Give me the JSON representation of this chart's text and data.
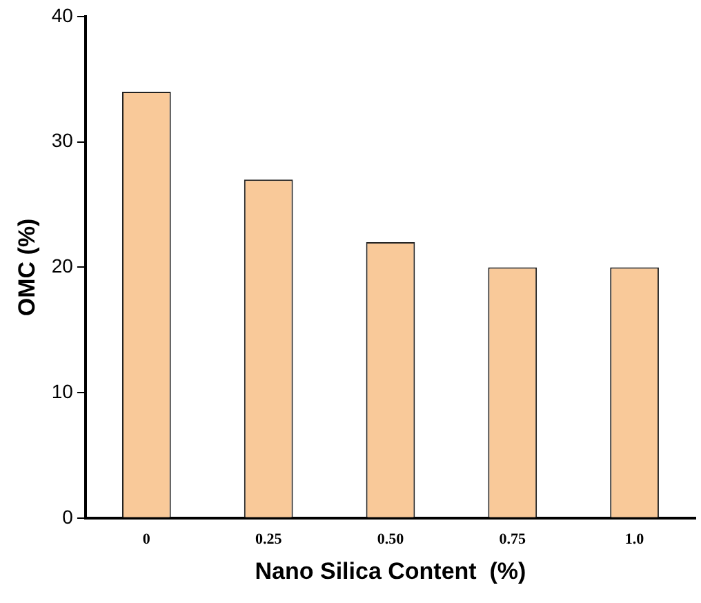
{
  "chart_data": {
    "type": "bar",
    "xlabel": "Nano Silica Content  (%)",
    "ylabel": "OMC (%)",
    "categories": [
      "0",
      "0.25",
      "0.50",
      "0.75",
      "1.0"
    ],
    "values": [
      34,
      27,
      22,
      20,
      20
    ],
    "color": "#f9c999",
    "ylim": [
      0,
      40
    ],
    "yticks": [
      0,
      10,
      20,
      30,
      40
    ],
    "grid": false,
    "legend": false
  }
}
